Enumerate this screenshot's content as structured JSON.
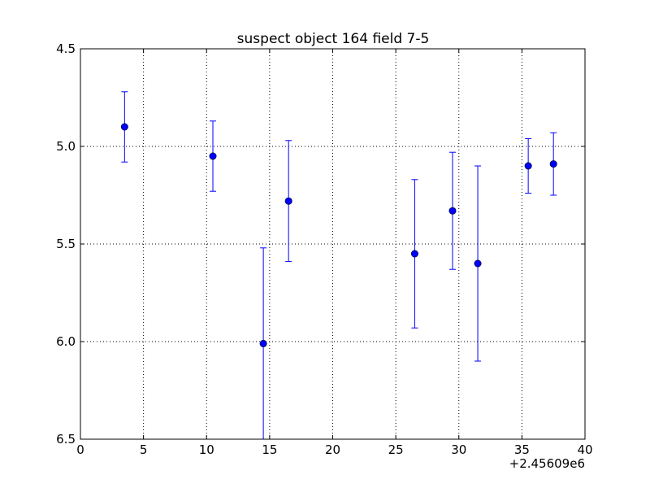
{
  "chart_data": {
    "type": "scatter",
    "title": "suspect object 164 field 7-5",
    "xlabel": "",
    "ylabel": "",
    "x_offset_label": "+2.45609e6",
    "xlim": [
      0,
      40
    ],
    "ylim": [
      4.5,
      6.5
    ],
    "y_inverted": true,
    "grid": true,
    "x_ticks": [
      0,
      5,
      10,
      15,
      20,
      25,
      30,
      35,
      40
    ],
    "x_tick_labels": [
      "0",
      "5",
      "10",
      "15",
      "20",
      "25",
      "30",
      "35",
      "40"
    ],
    "y_ticks": [
      4.5,
      5.0,
      5.5,
      6.0,
      6.5
    ],
    "y_tick_labels": [
      "4.5",
      "5.0",
      "5.5",
      "6.0",
      "6.5"
    ],
    "series": [
      {
        "marker": "circle",
        "color": "#0000ff",
        "points": [
          {
            "x": 3.5,
            "y": 4.9,
            "yerr": 0.18
          },
          {
            "x": 10.5,
            "y": 5.05,
            "yerr": 0.18
          },
          {
            "x": 14.5,
            "y": 6.01,
            "yerr": 0.49
          },
          {
            "x": 16.5,
            "y": 5.28,
            "yerr": 0.31
          },
          {
            "x": 26.5,
            "y": 5.55,
            "yerr": 0.38
          },
          {
            "x": 29.5,
            "y": 5.33,
            "yerr": 0.3
          },
          {
            "x": 31.5,
            "y": 5.6,
            "yerr": 0.5
          },
          {
            "x": 35.5,
            "y": 5.1,
            "yerr": 0.14
          },
          {
            "x": 37.5,
            "y": 5.09,
            "yerr": 0.16
          }
        ]
      }
    ]
  }
}
